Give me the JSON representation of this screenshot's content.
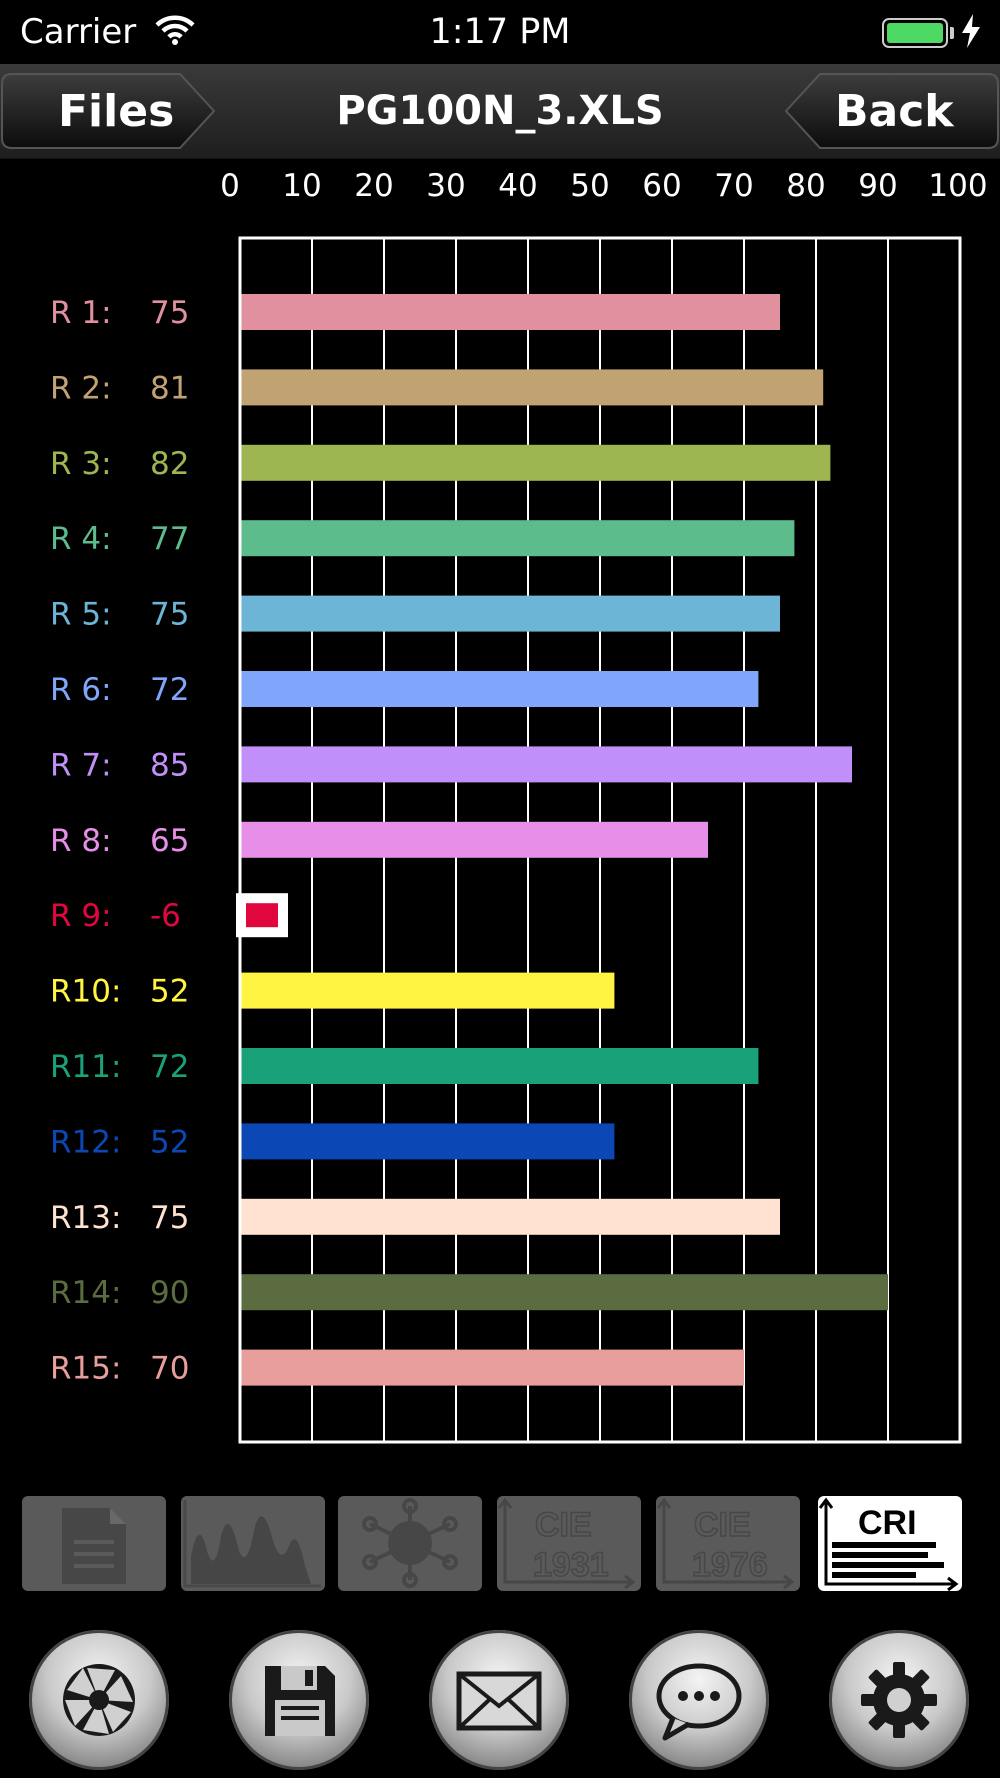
{
  "status_bar": {
    "carrier": "Carrier",
    "time": "1:17 PM",
    "battery_level": 1.0
  },
  "nav": {
    "title": "PG100N_3.XLS",
    "files_label": "Files",
    "back_label": "Back"
  },
  "chart_data": {
    "type": "bar",
    "orientation": "horizontal",
    "xlim": [
      0,
      100
    ],
    "x_ticks": [
      "0",
      "10",
      "20",
      "30",
      "40",
      "50",
      "60",
      "70",
      "80",
      "90",
      "100"
    ],
    "grid": true,
    "categories": [
      "R 1:",
      "R 2:",
      "R 3:",
      "R 4:",
      "R 5:",
      "R 6:",
      "R 7:",
      "R 8:",
      "R 9:",
      "R10:",
      "R11:",
      "R12:",
      "R13:",
      "R14:",
      "R15:"
    ],
    "values": [
      75,
      81,
      82,
      77,
      75,
      72,
      85,
      65,
      -6,
      52,
      72,
      52,
      75,
      90,
      70
    ],
    "value_labels": [
      "75",
      "81",
      "82",
      "77",
      "75",
      "72",
      "85",
      "65",
      "-6",
      "52",
      "72",
      "52",
      "75",
      "90",
      "70"
    ],
    "colors": [
      "#e0909f",
      "#c1a272",
      "#9db651",
      "#5cbc8b",
      "#6cb5d6",
      "#7fa6fb",
      "#c08ff9",
      "#e78fe8",
      "#e0073e",
      "#fff442",
      "#19a27a",
      "#0b48b6",
      "#ffe2cf",
      "#5b6c41",
      "#e89f9c"
    ]
  },
  "tabs": [
    {
      "name": "document",
      "icon": "document-icon",
      "label": "",
      "active": false
    },
    {
      "name": "spectrum",
      "icon": "spectrum-icon",
      "label": "",
      "active": false
    },
    {
      "name": "color-wheel",
      "icon": "color-wheel-icon",
      "label": "",
      "active": false
    },
    {
      "name": "cie1931",
      "icon": "cie-chart-icon",
      "label": "CIE 1931",
      "active": false
    },
    {
      "name": "cie1976",
      "icon": "cie-chart-icon",
      "label": "CIE 1976",
      "active": false
    },
    {
      "name": "cri",
      "icon": "cri-chart-icon",
      "label": "CRI",
      "active": true
    }
  ],
  "bottom_buttons": [
    {
      "name": "camera-shutter",
      "icon": "aperture-icon"
    },
    {
      "name": "save",
      "icon": "floppy-disk-icon"
    },
    {
      "name": "email",
      "icon": "envelope-icon"
    },
    {
      "name": "message",
      "icon": "speech-bubble-icon"
    },
    {
      "name": "settings",
      "icon": "gear-icon"
    }
  ]
}
